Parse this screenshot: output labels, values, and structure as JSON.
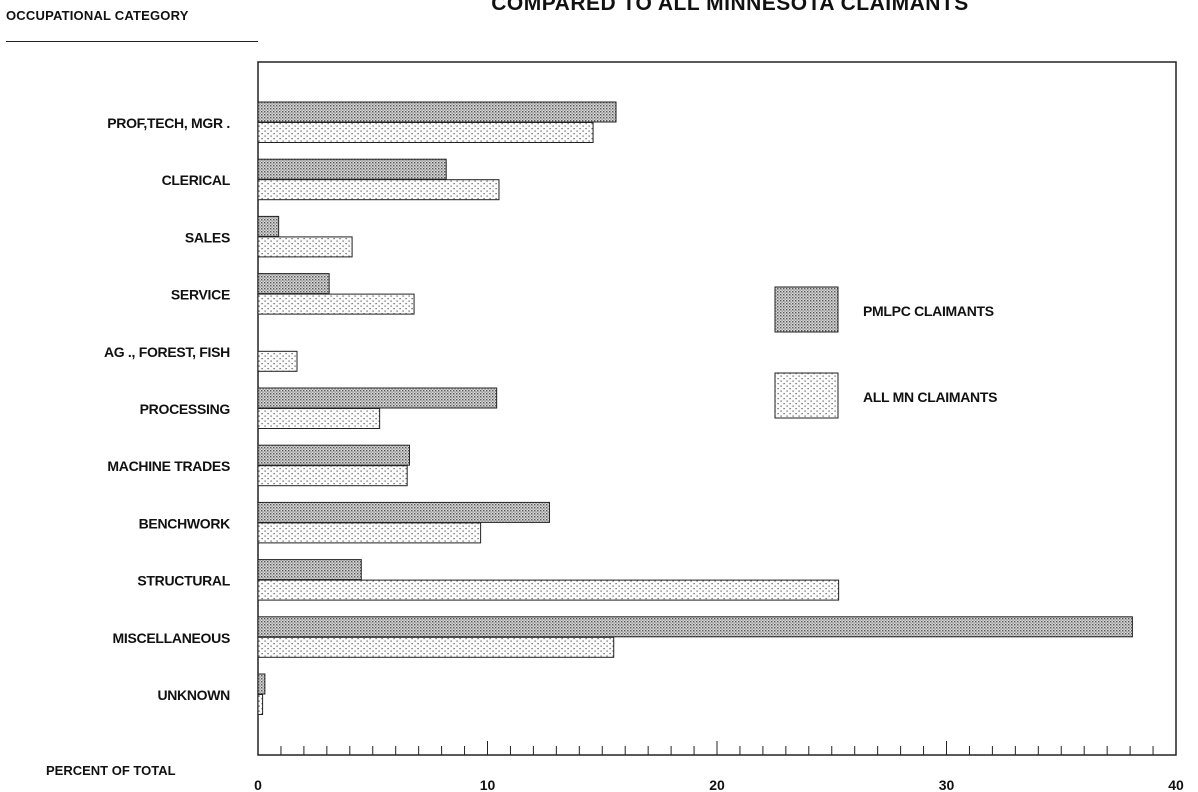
{
  "chart_data": {
    "type": "bar",
    "orientation": "horizontal",
    "title": "COMPARED TO ALL MINNESOTA CLAIMANTS",
    "ylabel": "OCCUPATIONAL CATEGORY",
    "xlabel": "PERCENT OF TOTAL",
    "categories": [
      "PROF,TECH, MGR .",
      "CLERICAL",
      "SALES",
      "SERVICE",
      "AG ., FOREST, FISH",
      "PROCESSING",
      "MACHINE TRADES",
      "BENCHWORK",
      "STRUCTURAL",
      "MISCELLANEOUS",
      "UNKNOWN"
    ],
    "series": [
      {
        "name": "PMLPC CLAIMANTS",
        "values": [
          15.6,
          8.2,
          0.9,
          3.1,
          0.0,
          10.4,
          6.6,
          12.7,
          4.5,
          38.1,
          0.3
        ],
        "color": "#b8b8b8",
        "pattern": "dense-dots"
      },
      {
        "name": "ALL MN CLAIMANTS",
        "values": [
          14.6,
          10.5,
          4.1,
          6.8,
          1.7,
          5.3,
          6.5,
          9.7,
          25.3,
          15.5,
          0.2
        ],
        "color": "#eeeeee",
        "pattern": "sparse-dots"
      }
    ],
    "xlim": [
      0,
      40
    ],
    "xticks": [
      "0",
      "10",
      "20",
      "30",
      "40"
    ],
    "legend_position": "right"
  }
}
